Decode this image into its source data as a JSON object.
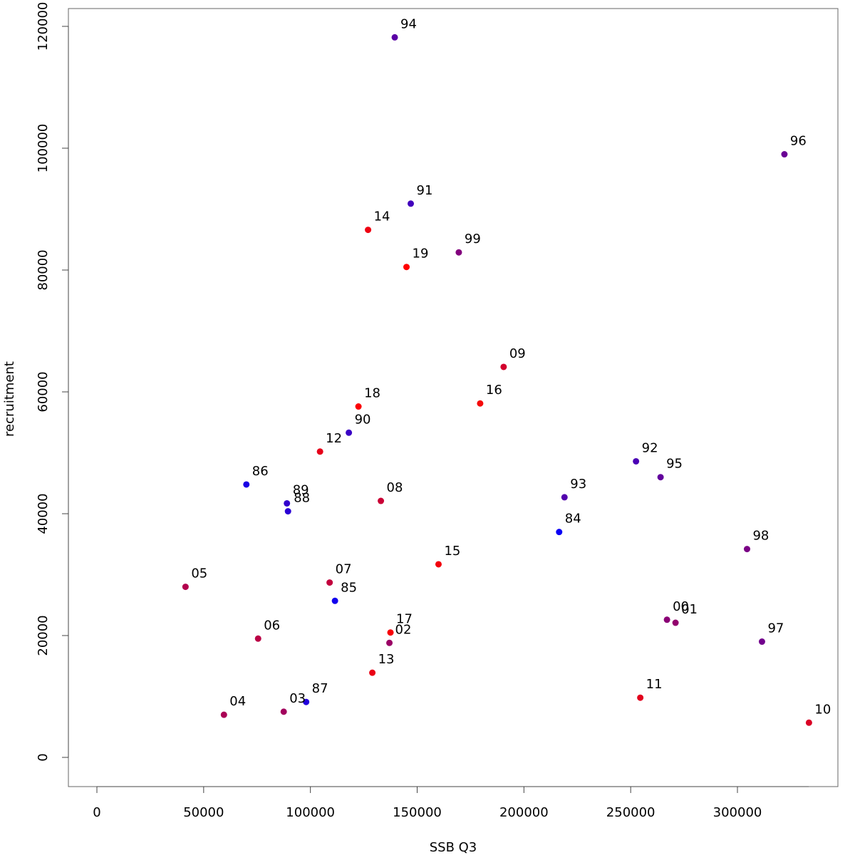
{
  "chart_data": {
    "type": "scatter",
    "title": "",
    "xlabel": "SSB Q3",
    "ylabel": "recruitment",
    "xlim": [
      0,
      340000
    ],
    "ylim": [
      0,
      120000
    ],
    "xticks": [
      0,
      50000,
      100000,
      150000,
      200000,
      250000,
      300000
    ],
    "yticks": [
      0,
      20000,
      40000,
      60000,
      80000,
      100000,
      120000
    ],
    "grid": false,
    "colors": {
      "start": "#0000ff",
      "end": "#ff0000"
    },
    "points": [
      {
        "label": "84",
        "x": 216500,
        "y": 37000,
        "color": "#0a00f5"
      },
      {
        "label": "85",
        "x": 111500,
        "y": 25700,
        "color": "#1200ed"
      },
      {
        "label": "86",
        "x": 70000,
        "y": 44800,
        "color": "#1a00e5"
      },
      {
        "label": "87",
        "x": 98000,
        "y": 9100,
        "color": "#2200dd"
      },
      {
        "label": "88",
        "x": 89500,
        "y": 40400,
        "color": "#2a00d5"
      },
      {
        "label": "89",
        "x": 89000,
        "y": 41700,
        "color": "#3200cd"
      },
      {
        "label": "90",
        "x": 118000,
        "y": 53300,
        "color": "#3a00c5"
      },
      {
        "label": "91",
        "x": 147000,
        "y": 90900,
        "color": "#4200bd"
      },
      {
        "label": "92",
        "x": 252500,
        "y": 48600,
        "color": "#4a00b5"
      },
      {
        "label": "93",
        "x": 219000,
        "y": 42700,
        "color": "#5200ad"
      },
      {
        "label": "94",
        "x": 139500,
        "y": 118200,
        "color": "#5a00a5"
      },
      {
        "label": "95",
        "x": 264000,
        "y": 46000,
        "color": "#62009d"
      },
      {
        "label": "96",
        "x": 322000,
        "y": 99000,
        "color": "#6a0095"
      },
      {
        "label": "97",
        "x": 311500,
        "y": 19000,
        "color": "#72008d"
      },
      {
        "label": "98",
        "x": 304500,
        "y": 34200,
        "color": "#7a0085"
      },
      {
        "label": "99",
        "x": 169500,
        "y": 82900,
        "color": "#82007d"
      },
      {
        "label": "00",
        "x": 267000,
        "y": 22600,
        "color": "#8a0075"
      },
      {
        "label": "01",
        "x": 271000,
        "y": 22100,
        "color": "#92006d"
      },
      {
        "label": "02",
        "x": 137000,
        "y": 18800,
        "color": "#9a0065"
      },
      {
        "label": "03",
        "x": 87500,
        "y": 7500,
        "color": "#a2005d"
      },
      {
        "label": "04",
        "x": 59500,
        "y": 7000,
        "color": "#aa0055"
      },
      {
        "label": "05",
        "x": 41500,
        "y": 28000,
        "color": "#b2004d"
      },
      {
        "label": "06",
        "x": 75500,
        "y": 19500,
        "color": "#ba0045"
      },
      {
        "label": "07",
        "x": 109000,
        "y": 28700,
        "color": "#c2003d"
      },
      {
        "label": "08",
        "x": 133000,
        "y": 42100,
        "color": "#ca0035"
      },
      {
        "label": "09",
        "x": 190500,
        "y": 64100,
        "color": "#d2002d"
      },
      {
        "label": "10",
        "x": 333500,
        "y": 5700,
        "color": "#da0025"
      },
      {
        "label": "11",
        "x": 254500,
        "y": 9800,
        "color": "#e2001d"
      },
      {
        "label": "12",
        "x": 104500,
        "y": 50200,
        "color": "#e60019"
      },
      {
        "label": "13",
        "x": 129000,
        "y": 13900,
        "color": "#ea0015"
      },
      {
        "label": "14",
        "x": 127000,
        "y": 86600,
        "color": "#ee0011"
      },
      {
        "label": "15",
        "x": 160000,
        "y": 31700,
        "color": "#f2000d"
      },
      {
        "label": "16",
        "x": 179500,
        "y": 58100,
        "color": "#f50a0a"
      },
      {
        "label": "17",
        "x": 137500,
        "y": 20500,
        "color": "#f80006"
      },
      {
        "label": "18",
        "x": 122500,
        "y": 57600,
        "color": "#fb0004"
      },
      {
        "label": "19",
        "x": 145000,
        "y": 80500,
        "color": "#ff0000"
      }
    ]
  }
}
